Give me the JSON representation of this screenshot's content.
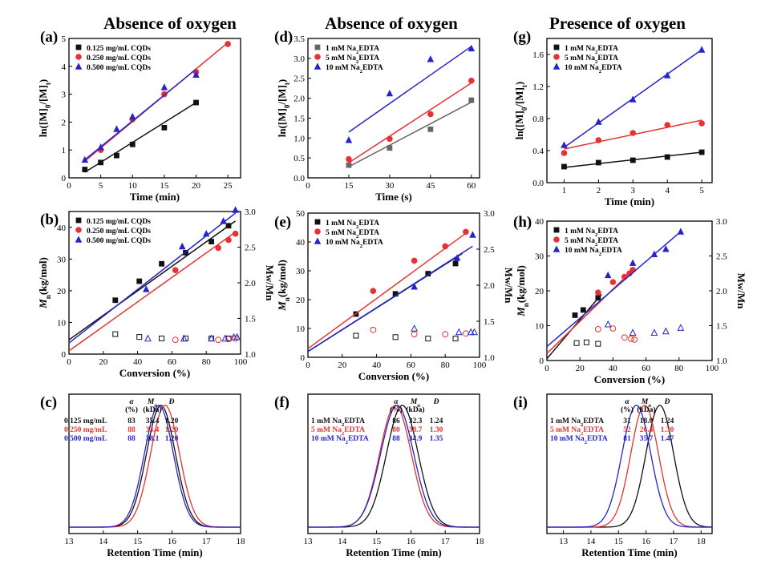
{
  "column_titles": [
    "Absence of oxygen",
    "Absence of oxygen",
    "Presence of oxygen"
  ],
  "colors": {
    "black": "#111111",
    "red": "#e63232",
    "blue": "#2424c8",
    "gray": "#666666"
  },
  "chart_data": [
    {
      "id": "a",
      "panel_label": "(a)",
      "type": "scatter",
      "xlabel": "Time (min)",
      "ylabel_main": "ln([M]",
      "ylabel_sub1": "0",
      "ylabel_mid": "/[M]",
      "ylabel_sub2": "t",
      "ylabel_end": ")",
      "xlim": [
        0,
        27
      ],
      "ylim": [
        0,
        5
      ],
      "xticks": [
        0,
        5,
        10,
        15,
        20,
        25
      ],
      "yticks": [
        0,
        1,
        2,
        3,
        4,
        5
      ],
      "legend_position": "top-left",
      "series": [
        {
          "name": "0.125 mg/mL CQDs",
          "color": "black",
          "marker": "square",
          "x": [
            2.5,
            5,
            7.5,
            10,
            15,
            20
          ],
          "y": [
            0.3,
            0.55,
            0.8,
            1.2,
            1.8,
            2.7
          ],
          "fit": [
            [
              2.5,
              0.2
            ],
            [
              20,
              2.7
            ]
          ]
        },
        {
          "name": "0.250 mg/mL CQDs",
          "color": "red",
          "marker": "circle",
          "x": [
            5,
            10,
            15,
            20,
            25
          ],
          "y": [
            1.0,
            2.1,
            3.0,
            3.8,
            4.8
          ],
          "fit": [
            [
              2.5,
              0.6
            ],
            [
              25,
              4.85
            ]
          ]
        },
        {
          "name": "0.500 mg/mL CQDs",
          "color": "blue",
          "marker": "triangle",
          "x": [
            2.5,
            5,
            7.5,
            10,
            15,
            20
          ],
          "y": [
            0.65,
            1.1,
            1.75,
            2.2,
            3.25,
            3.7
          ],
          "fit": [
            [
              2.5,
              0.65
            ],
            [
              20,
              3.9
            ]
          ]
        }
      ]
    },
    {
      "id": "d",
      "panel_label": "(d)",
      "type": "scatter",
      "xlabel": "Time (s)",
      "ylabel_main": "ln([M]",
      "ylabel_sub1": "0",
      "ylabel_mid": "/[M]",
      "ylabel_sub2": "t",
      "ylabel_end": ")",
      "xlim": [
        0,
        63
      ],
      "ylim": [
        0,
        3.5
      ],
      "xticks": [
        0,
        15,
        30,
        45,
        60
      ],
      "yticks": [
        0.0,
        0.5,
        1.0,
        1.5,
        2.0,
        2.5,
        3.0,
        3.5
      ],
      "ytick_labels": [
        "0.0",
        "0.5",
        "1.0",
        "1.5",
        "2.0",
        "2.5",
        "3.0",
        "3.5"
      ],
      "legend_position": "top-left",
      "series": [
        {
          "name_main": "1 mM Na",
          "name_sub": "2",
          "name_end": "EDTA",
          "color": "gray",
          "marker": "square",
          "x": [
            15,
            30,
            45,
            60
          ],
          "y": [
            0.32,
            0.75,
            1.22,
            1.95
          ],
          "fit": [
            [
              15,
              0.28
            ],
            [
              60,
              1.9
            ]
          ]
        },
        {
          "name_main": "5 mM Na",
          "name_sub": "2",
          "name_end": "EDTA",
          "color": "red",
          "marker": "circle",
          "x": [
            15,
            30,
            45,
            60
          ],
          "y": [
            0.47,
            0.98,
            1.6,
            2.44
          ],
          "fit": [
            [
              15,
              0.38
            ],
            [
              60,
              2.38
            ]
          ]
        },
        {
          "name_main": "10 mM Na",
          "name_sub": "2",
          "name_end": "EDTA",
          "color": "blue",
          "marker": "triangle",
          "x": [
            15,
            30,
            45,
            60
          ],
          "y": [
            0.95,
            2.12,
            2.98,
            3.25
          ],
          "fit": [
            [
              15,
              1.15
            ],
            [
              60,
              3.3
            ]
          ]
        }
      ]
    },
    {
      "id": "g",
      "panel_label": "(g)",
      "type": "scatter",
      "xlabel": "Time (min)",
      "ylabel_main": "ln([M]",
      "ylabel_sub1": "0",
      "ylabel_mid": "/[M]",
      "ylabel_sub2": "t",
      "ylabel_end": ")",
      "xlim": [
        0.5,
        5.3
      ],
      "ylim": [
        0,
        1.8
      ],
      "xticks": [
        1,
        2,
        3,
        4,
        5
      ],
      "yticks": [
        0.0,
        0.4,
        0.8,
        1.2,
        1.6
      ],
      "ytick_labels": [
        "0.0",
        "0.4",
        "0.8",
        "1.2",
        "1.6"
      ],
      "legend_position": "top-left",
      "series": [
        {
          "name_main": "1 mM Na",
          "name_sub": "2",
          "name_end": "EDTA",
          "color": "black",
          "marker": "square",
          "x": [
            1,
            2,
            3,
            4,
            5
          ],
          "y": [
            0.2,
            0.25,
            0.28,
            0.32,
            0.38
          ],
          "fit": [
            [
              1,
              0.19
            ],
            [
              5,
              0.38
            ]
          ]
        },
        {
          "name_main": "5 mM Na",
          "name_sub": "2",
          "name_end": "EDTA",
          "color": "red",
          "marker": "circle",
          "x": [
            1,
            2,
            3,
            4,
            5
          ],
          "y": [
            0.37,
            0.53,
            0.62,
            0.72,
            0.74
          ],
          "fit": [
            [
              1,
              0.42
            ],
            [
              5,
              0.78
            ]
          ]
        },
        {
          "name_main": "10 mM Na",
          "name_sub": "2",
          "name_end": "EDTA",
          "color": "blue",
          "marker": "triangle",
          "x": [
            1,
            2,
            3,
            4,
            5
          ],
          "y": [
            0.47,
            0.76,
            1.04,
            1.34,
            1.66
          ],
          "fit": [
            [
              1,
              0.44
            ],
            [
              5,
              1.66
            ]
          ]
        }
      ]
    },
    {
      "id": "b",
      "panel_label": "(b)",
      "type": "scatter",
      "xlabel": "Conversion (%)",
      "ylabel_left_main": "M",
      "ylabel_left_sub": "n",
      "ylabel_left_end": "(kg/mol)",
      "ylabel_right": "Mw/Mn",
      "xlim": [
        0,
        100
      ],
      "ylim": [
        0,
        45
      ],
      "y2lim": [
        1.0,
        3.0
      ],
      "xticks": [
        0,
        20,
        40,
        60,
        80,
        100
      ],
      "yticks": [
        0,
        10,
        20,
        30,
        40
      ],
      "y2ticks": [
        1.0,
        1.5,
        2.0,
        2.5,
        3.0
      ],
      "y2tick_labels": [
        "1.0",
        "1.5",
        "2.0",
        "2.5",
        "3.0"
      ],
      "legend_position": "top-left",
      "series": [
        {
          "name": "0.125 mg/mL CQDs",
          "color": "black",
          "marker": "square",
          "x": [
            27,
            41,
            54,
            68,
            83,
            93
          ],
          "y": [
            17,
            23,
            28.5,
            32,
            35.5,
            40.5
          ],
          "fit": [
            [
              0,
              4.5
            ],
            [
              97,
              42
            ]
          ],
          "disp_x": [
            27,
            41,
            54,
            68,
            83,
            93
          ],
          "disp": [
            1.28,
            1.24,
            1.22,
            1.22,
            1.22,
            1.22
          ]
        },
        {
          "name": "0.250 mg/mL CQDs",
          "color": "red",
          "marker": "circle",
          "x": [
            62,
            87,
            93,
            97
          ],
          "y": [
            26.5,
            33.5,
            36,
            38
          ],
          "fit": [
            [
              0,
              1
            ],
            [
              97,
              38.5
            ]
          ],
          "disp_x": [
            62,
            87,
            93,
            97
          ],
          "disp": [
            1.2,
            1.2,
            1.21,
            1.22
          ]
        },
        {
          "name": "0.500 mg/mL CQDs",
          "color": "blue",
          "marker": "triangle",
          "x": [
            45,
            66,
            80,
            90,
            97
          ],
          "y": [
            20.5,
            34,
            38,
            42,
            45.5
          ],
          "fit": [
            [
              0,
              3.5
            ],
            [
              97,
              44.5
            ]
          ],
          "disp_x": [
            46,
            67,
            83,
            91,
            96,
            98
          ],
          "disp": [
            1.22,
            1.22,
            1.22,
            1.22,
            1.24,
            1.24
          ]
        }
      ]
    },
    {
      "id": "e",
      "panel_label": "(e)",
      "type": "scatter",
      "xlabel": "Conversion (%)",
      "ylabel_left_main": "M",
      "ylabel_left_sub": "n",
      "ylabel_left_end": "(kg/mol)",
      "ylabel_right": "Mw/Mn",
      "xlim": [
        0,
        100
      ],
      "ylim": [
        0,
        50
      ],
      "y2lim": [
        1.0,
        3.0
      ],
      "xticks": [
        0,
        20,
        40,
        60,
        80,
        100
      ],
      "yticks": [
        0,
        10,
        20,
        30,
        40,
        50
      ],
      "y2ticks": [
        1.0,
        1.5,
        2.0,
        2.5,
        3.0
      ],
      "y2tick_labels": [
        "1.0",
        "1.5",
        "2.0",
        "2.5",
        "3.0"
      ],
      "legend_position": "top-left",
      "series": [
        {
          "name_main": "1 mM Na",
          "name_sub": "2",
          "name_end": "EDTA",
          "color": "black",
          "marker": "square",
          "x": [
            28,
            51,
            70,
            86
          ],
          "y": [
            15,
            22,
            29,
            32.5
          ],
          "fit": [
            [
              0,
              2
            ],
            [
              90,
              36
            ]
          ],
          "disp_x": [
            28,
            51,
            70,
            86
          ],
          "disp": [
            1.3,
            1.28,
            1.26,
            1.26
          ]
        },
        {
          "name_main": "5 mM Na",
          "name_sub": "2",
          "name_end": "EDTA",
          "color": "red",
          "marker": "circle",
          "x": [
            38,
            62,
            80,
            92
          ],
          "y": [
            23,
            33.5,
            38.5,
            43.5
          ],
          "fit": [
            [
              0,
              3
            ],
            [
              92,
              43
            ]
          ],
          "disp_x": [
            38,
            62,
            80,
            92
          ],
          "disp": [
            1.38,
            1.32,
            1.32,
            1.33
          ]
        },
        {
          "name_main": "10 mM Na",
          "name_sub": "2",
          "name_end": "EDTA",
          "color": "blue",
          "marker": "triangle",
          "x": [
            62,
            87,
            96
          ],
          "y": [
            24.5,
            34.5,
            42.5
          ],
          "fit": [
            [
              0,
              2
            ],
            [
              96,
              38.5
            ]
          ],
          "disp_x": [
            62,
            88,
            95,
            97
          ],
          "disp": [
            1.4,
            1.35,
            1.35,
            1.35
          ]
        }
      ]
    },
    {
      "id": "h",
      "panel_label": "(h)",
      "type": "scatter",
      "xlabel": "Conversion (%)",
      "ylabel_left_main": "M",
      "ylabel_left_sub": "n",
      "ylabel_left_end": "(kg/mol)",
      "ylabel_right": "Mw/Mn",
      "xlim": [
        0,
        100
      ],
      "ylim": [
        0,
        40
      ],
      "y2lim": [
        1.0,
        3.0
      ],
      "xticks": [
        0,
        20,
        40,
        60,
        80,
        100
      ],
      "yticks": [
        0,
        10,
        20,
        30,
        40
      ],
      "y2ticks": [
        1.0,
        1.5,
        2.0,
        2.5,
        3.0
      ],
      "y2tick_labels": [
        "1.0",
        "1.5",
        "2.0",
        "2.5",
        "3.0"
      ],
      "legend_position": "top-left",
      "series": [
        {
          "name_main": "1 mM Na",
          "name_sub": "2",
          "name_end": "EDTA",
          "color": "black",
          "marker": "square",
          "x": [
            17,
            22,
            31
          ],
          "y": [
            13,
            14.5,
            18
          ],
          "fit": [
            [
              0,
              0.5
            ],
            [
              33,
              19
            ]
          ],
          "disp_x": [
            18,
            24,
            31
          ],
          "disp": [
            1.25,
            1.26,
            1.24
          ]
        },
        {
          "name_main": "5 mM Na",
          "name_sub": "2",
          "name_end": "EDTA",
          "color": "red",
          "marker": "circle",
          "x": [
            31,
            40,
            47,
            50,
            52
          ],
          "y": [
            19.5,
            22.5,
            24,
            25,
            26
          ],
          "fit": [
            [
              0,
              2
            ],
            [
              52,
              26
            ]
          ],
          "disp_x": [
            31,
            40,
            47,
            51,
            53
          ],
          "disp": [
            1.45,
            1.46,
            1.33,
            1.31,
            1.3
          ]
        },
        {
          "name_main": "10 mM Na",
          "name_sub": "2",
          "name_end": "EDTA",
          "color": "blue",
          "marker": "triangle",
          "x": [
            37,
            52,
            65,
            72,
            81
          ],
          "y": [
            24.5,
            28,
            30.5,
            32,
            37
          ],
          "fit": [
            [
              0,
              4
            ],
            [
              81,
              37
            ]
          ],
          "disp_x": [
            37,
            52,
            65,
            72,
            81
          ],
          "disp": [
            1.52,
            1.4,
            1.4,
            1.42,
            1.47
          ]
        }
      ]
    },
    {
      "id": "c",
      "panel_label": "(c)",
      "type": "line",
      "xlabel": "Retention Time (min)",
      "xlim": [
        13,
        18
      ],
      "xticks": [
        13,
        14,
        15,
        16,
        17,
        18
      ],
      "table_header": [
        "α",
        "Mn",
        "Đ"
      ],
      "table_units": [
        "(%)",
        "(kDa)",
        ""
      ],
      "series": [
        {
          "name": "0.125 mg/mL",
          "alpha": "83",
          "Mn": "35.4",
          "D": "1.20",
          "color": "black",
          "peak": 15.68,
          "width": 0.42
        },
        {
          "name": "0.250 mg/mL",
          "alpha": "88",
          "Mn": "33.4",
          "D": "1.20",
          "color": "red",
          "peak": 15.8,
          "width": 0.42
        },
        {
          "name": "0.500 mg/mL",
          "alpha": "88",
          "Mn": "38.1",
          "D": "1.20",
          "color": "blue",
          "peak": 15.62,
          "width": 0.42
        }
      ]
    },
    {
      "id": "f",
      "panel_label": "(f)",
      "type": "line",
      "xlabel": "Retention Time (min)",
      "xlim": [
        13,
        18
      ],
      "xticks": [
        13,
        14,
        15,
        16,
        17,
        18
      ],
      "table_header": [
        "α",
        "Mn",
        "Đ"
      ],
      "table_units": [
        "(%)",
        "(kDa)",
        ""
      ],
      "series": [
        {
          "name_main": "1 mM Na",
          "name_sub": "2",
          "name_end": "EDTA",
          "alpha": "86",
          "Mn": "32.3",
          "D": "1.24",
          "color": "black",
          "peak": 15.75,
          "width": 0.46
        },
        {
          "name_main": "5 mM Na",
          "name_sub": "2",
          "name_end": "EDTA",
          "alpha": "80",
          "Mn": "38.7",
          "D": "1.30",
          "color": "red",
          "peak": 15.55,
          "width": 0.46
        },
        {
          "name_main": "10 mM Na",
          "name_sub": "2",
          "name_end": "EDTA",
          "alpha": "88",
          "Mn": "34.9",
          "D": "1.35",
          "color": "blue",
          "peak": 15.6,
          "width": 0.48
        }
      ]
    },
    {
      "id": "i",
      "panel_label": "(i)",
      "type": "line",
      "xlabel": "Retention Time (min)",
      "xlim": [
        12.4,
        18.4
      ],
      "xticks": [
        13,
        14,
        15,
        16,
        17,
        18
      ],
      "table_header": [
        "α",
        "Mn",
        "Đ"
      ],
      "table_units": [
        "(%)",
        "(kDa)",
        ""
      ],
      "series": [
        {
          "name_main": "1 mM Na",
          "name_sub": "2",
          "name_end": "EDTA",
          "alpha": "31",
          "Mn": "18.0",
          "D": "1.24",
          "color": "black",
          "peak": 16.5,
          "width": 0.5
        },
        {
          "name_main": "5 mM Na",
          "name_sub": "2",
          "name_end": "EDTA",
          "alpha": "52",
          "Mn": "26.4",
          "D": "1.30",
          "color": "red",
          "peak": 15.95,
          "width": 0.5
        },
        {
          "name_main": "10 mM Na",
          "name_sub": "2",
          "name_end": "EDTA",
          "alpha": "81",
          "Mn": "35.7",
          "D": "1.47",
          "color": "blue",
          "peak": 15.65,
          "width": 0.52
        }
      ]
    }
  ]
}
